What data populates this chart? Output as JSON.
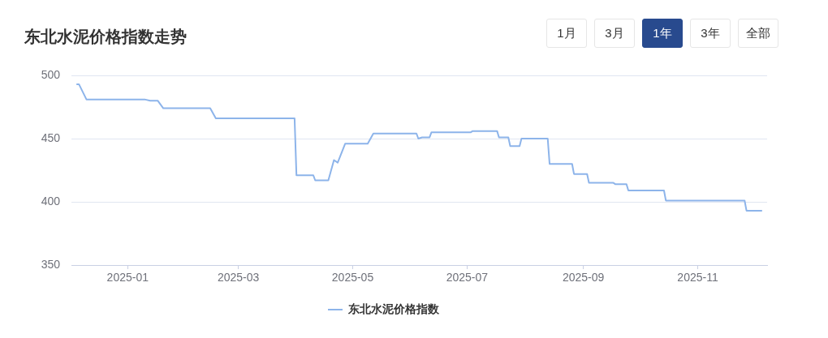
{
  "chart_data": {
    "type": "line",
    "title": "东北水泥价格指数走势",
    "annotations": [
      "1月",
      "3月",
      "1年",
      "3年",
      "全部"
    ],
    "x": [
      "2024-12-05",
      "2024-12-06",
      "2024-12-10",
      "2025-01-10",
      "2025-01-13",
      "2025-01-17",
      "2025-01-20",
      "2025-02-14",
      "2025-02-17",
      "2025-03-31",
      "2025-04-01",
      "2025-04-10",
      "2025-04-11",
      "2025-04-18",
      "2025-04-21",
      "2025-04-23",
      "2025-04-27",
      "2025-05-09",
      "2025-05-12",
      "2025-06-04",
      "2025-06-05",
      "2025-06-07",
      "2025-06-11",
      "2025-06-12",
      "2025-07-03",
      "2025-07-04",
      "2025-07-17",
      "2025-07-18",
      "2025-07-23",
      "2025-07-24",
      "2025-07-29",
      "2025-07-30",
      "2025-08-13",
      "2025-08-14",
      "2025-08-26",
      "2025-08-27",
      "2025-09-03",
      "2025-09-04",
      "2025-09-17",
      "2025-09-18",
      "2025-09-24",
      "2025-09-25",
      "2025-10-14",
      "2025-10-15",
      "2025-11-26",
      "2025-11-27",
      "2025-12-05"
    ],
    "series": [
      {
        "name": "东北水泥价格指数",
        "color": "#8db4ea",
        "values": [
          493,
          493,
          481,
          481,
          480,
          480,
          474,
          474,
          466,
          466,
          421,
          421,
          417,
          417,
          433,
          431,
          446,
          446,
          454,
          454,
          450,
          451,
          451,
          455,
          455,
          456,
          456,
          451,
          451,
          444,
          444,
          450,
          450,
          430,
          430,
          422,
          422,
          415,
          415,
          414,
          414,
          409,
          409,
          401,
          401,
          393,
          393
        ]
      }
    ],
    "xlim": [
      "2024-12-02",
      "2025-12-08"
    ],
    "xticks": [
      "2025-01",
      "2025-03",
      "2025-05",
      "2025-07",
      "2025-09",
      "2025-11"
    ],
    "ylim": [
      350,
      500
    ],
    "yticks": [
      350,
      400,
      450,
      500
    ],
    "grid": "y",
    "legend": "bottom",
    "marker": "none",
    "line_style": "solid"
  }
}
